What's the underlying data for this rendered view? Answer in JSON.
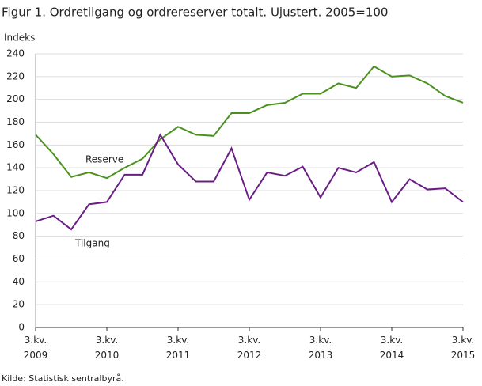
{
  "chart_data": {
    "type": "line",
    "title": "Figur 1. Ordretilgang og ordrereserver totalt. Ujustert. 2005=100",
    "y_label": "Indeks",
    "source": "Kilde: Statistisk sentralbyrå.",
    "categories": [
      "3.kv. 2009",
      null,
      null,
      null,
      "3.kv. 2010",
      null,
      null,
      null,
      "3.kv. 2011",
      null,
      null,
      null,
      "3.kv. 2012",
      null,
      null,
      null,
      "3.kv. 2013",
      null,
      null,
      null,
      "3.kv. 2014",
      null,
      null,
      null,
      "3.kv. 2015"
    ],
    "series": [
      {
        "name": "Reserve",
        "color": "#4b9120",
        "values": [
          169,
          152,
          132,
          136,
          131,
          140,
          148,
          165,
          176,
          169,
          168,
          188,
          188,
          195,
          197,
          205,
          205,
          214,
          210,
          229,
          220,
          221,
          214,
          203,
          197
        ]
      },
      {
        "name": "Tilgang",
        "color": "#6b1d86",
        "values": [
          93,
          98,
          86,
          108,
          110,
          134,
          134,
          169,
          143,
          128,
          128,
          157,
          112,
          136,
          133,
          141,
          114,
          140,
          136,
          145,
          110,
          130,
          121,
          122,
          110
        ]
      }
    ],
    "ylim": [
      0,
      240
    ],
    "yticks": [
      0,
      20,
      40,
      60,
      80,
      100,
      120,
      140,
      160,
      180,
      200,
      220,
      240
    ],
    "grid": true
  }
}
